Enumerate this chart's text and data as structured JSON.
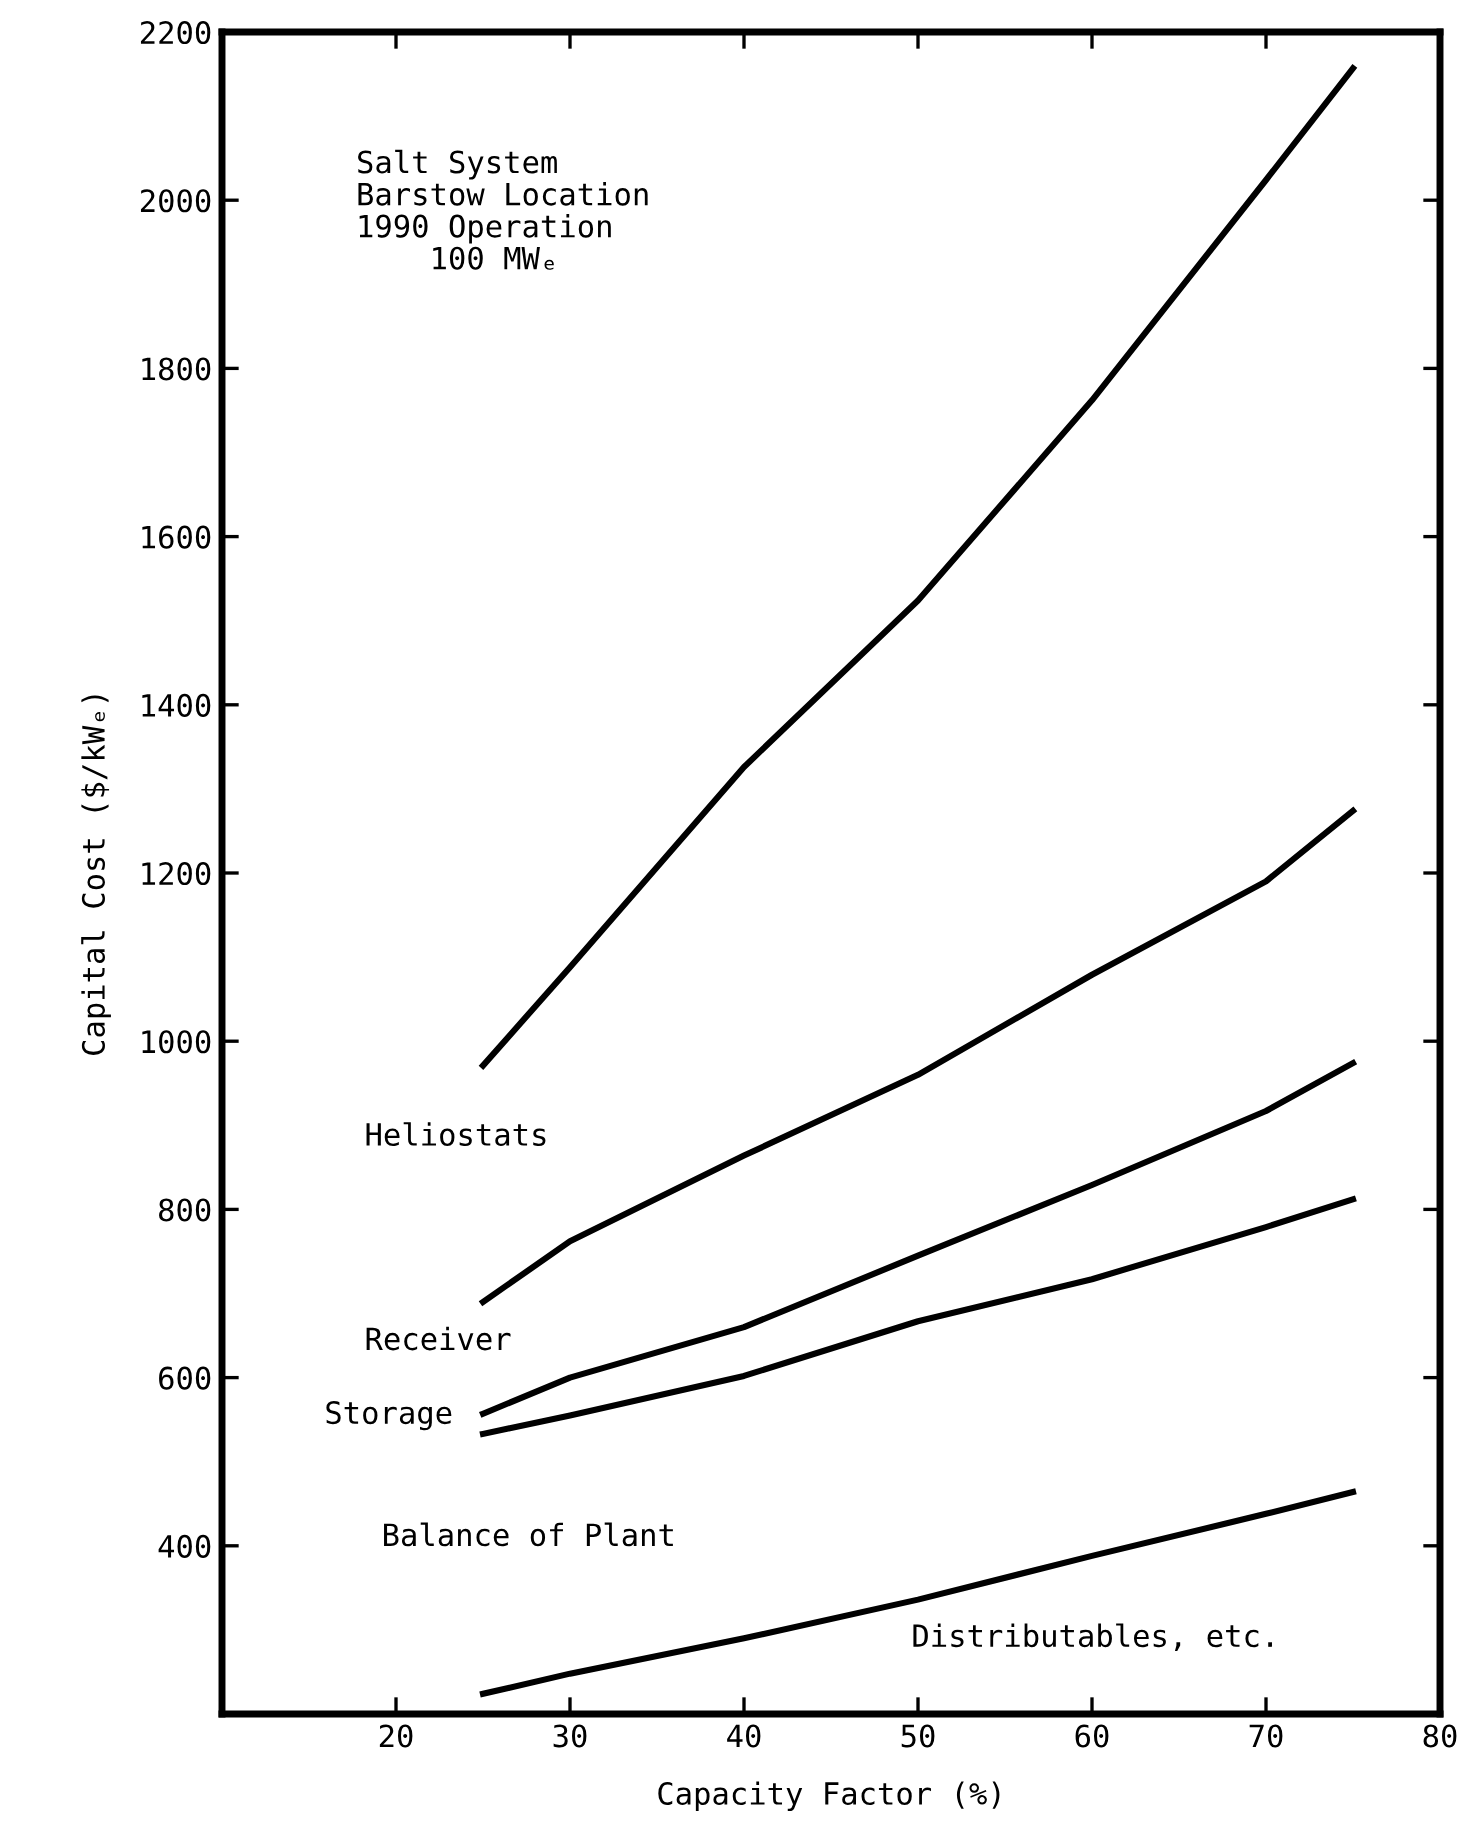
{
  "chart_data": {
    "type": "line",
    "xlabel": "Capacity Factor (%)",
    "ylabel": "Capital Cost ($/kWₑ)",
    "x": [
      25,
      30,
      40,
      50,
      60,
      70,
      75
    ],
    "series": [
      {
        "color": "#000000",
        "values": [
          971,
          1088,
          1326,
          1524,
          1762,
          2024,
          2157
        ]
      },
      {
        "color": "#000000",
        "values": [
          690,
          762,
          864,
          960,
          1079,
          1190,
          1274
        ]
      },
      {
        "color": "#000000",
        "values": [
          557,
          600,
          660,
          745,
          829,
          917,
          974
        ]
      },
      {
        "color": "#000000",
        "values": [
          533,
          555,
          602,
          667,
          717,
          779,
          812
        ]
      },
      {
        "color": "#000000",
        "values": [
          224,
          248,
          290,
          336,
          388,
          438,
          464
        ]
      }
    ],
    "xlim": [
      10,
      80
    ],
    "xticks": [
      20,
      30,
      40,
      50,
      60,
      70,
      80
    ],
    "ylim": [
      200,
      2200
    ],
    "yticks": [
      400,
      600,
      800,
      1000,
      1200,
      1400,
      1600,
      1800,
      2000,
      2200
    ],
    "grid": false,
    "legend": false,
    "marker": "none",
    "line_style": "solid",
    "annotations": [
      "Salt System\nBarstow Location\n1990 Operation\n    100 MWₑ",
      "Heliostats",
      "Receiver",
      "Storage",
      "Balance of Plant",
      "Distributables, etc."
    ]
  }
}
